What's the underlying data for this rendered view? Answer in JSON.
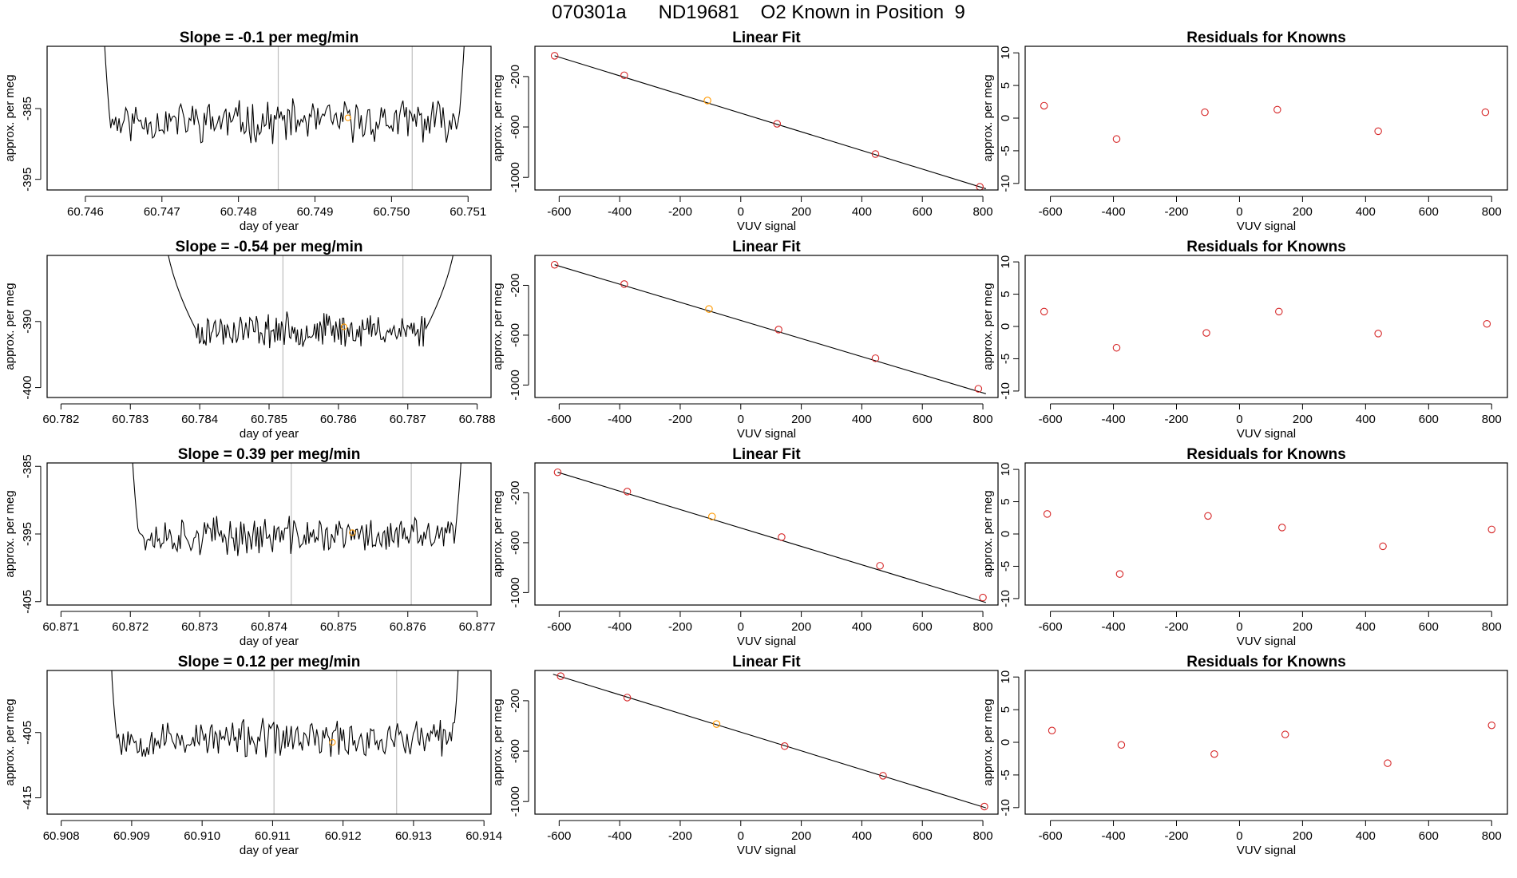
{
  "page_title": "070301a      ND19681    O2 Known in Position  9",
  "colors": {
    "line": "#000000",
    "point": "#d62728",
    "highlight": "#ff9900",
    "guide": "#bfbfbf",
    "frame": "#000000"
  },
  "chart_data": [
    {
      "type": "line",
      "row": 0,
      "title": "Slope =  -0.1  per meg/min",
      "xlabel": "day of year",
      "ylabel": "approx. per meg",
      "xlim": [
        60.7455,
        60.7513
      ],
      "ylim": [
        -396.5,
        -376.2
      ],
      "xticks": [
        "60.746",
        "60.747",
        "60.748",
        "60.749",
        "60.750",
        "60.751"
      ],
      "xtick_values": [
        60.746,
        60.747,
        60.748,
        60.749,
        60.75,
        60.751
      ],
      "yticks": [
        "-385",
        "-395"
      ],
      "ytick_values": [
        -385,
        -395
      ],
      "vlines": [
        60.74852,
        60.75027
      ],
      "highlight_point": {
        "x": 60.74943,
        "y": -386.3
      },
      "series_start": 60.7462,
      "series_end": 60.751,
      "spike_top": -360,
      "spike_len": 0.00012,
      "center": -386.8,
      "noise": 2.4,
      "seed": 11
    },
    {
      "type": "scatter",
      "row": 0,
      "title": "Linear Fit",
      "xlabel": "VUV signal",
      "ylabel": "approx. per meg",
      "xlim": [
        -680,
        850
      ],
      "ylim": [
        -1100,
        40
      ],
      "xticks": [
        "-600",
        "-400",
        "-200",
        "0",
        "200",
        "400",
        "600",
        "800"
      ],
      "xtick_values": [
        -600,
        -400,
        -200,
        0,
        200,
        400,
        600,
        800
      ],
      "yticks": [
        "-200",
        "-600",
        "-1000"
      ],
      "ytick_values": [
        -200,
        -600,
        -1000
      ],
      "x": [
        -615,
        -385,
        -110,
        120,
        445,
        790
      ],
      "y": [
        -35,
        -190,
        -390,
        -575,
        -815,
        -1075
      ],
      "highlight_index": 2,
      "fit_line": [
        [
          -615,
          -35
        ],
        [
          810,
          -1090
        ]
      ]
    },
    {
      "type": "scatter",
      "row": 0,
      "title": "Residuals for Knowns",
      "xlabel": "VUV signal",
      "ylabel": "approx. per meg",
      "xlim": [
        -680,
        850
      ],
      "ylim": [
        -11,
        11
      ],
      "xticks": [
        "-600",
        "-400",
        "-200",
        "0",
        "200",
        "400",
        "600",
        "800"
      ],
      "xtick_values": [
        -600,
        -400,
        -200,
        0,
        200,
        400,
        600,
        800
      ],
      "yticks": [
        "10",
        "5",
        "0",
        "-5",
        "-10"
      ],
      "ytick_values": [
        10,
        5,
        0,
        -5,
        -10
      ],
      "x": [
        -620,
        -390,
        -110,
        120,
        440,
        780
      ],
      "y": [
        1.9,
        -3.2,
        0.9,
        1.3,
        -2.0,
        0.9
      ]
    },
    {
      "type": "line",
      "row": 1,
      "title": "Slope =  -0.54  per meg/min",
      "xlabel": "day of year",
      "ylabel": "approx. per meg",
      "xlim": [
        60.7818,
        60.7882
      ],
      "ylim": [
        -401.5,
        -380
      ],
      "xticks": [
        "60.782",
        "60.783",
        "60.784",
        "60.785",
        "60.786",
        "60.787",
        "60.788"
      ],
      "xtick_values": [
        60.782,
        60.783,
        60.784,
        60.785,
        60.786,
        60.787,
        60.788
      ],
      "yticks": [
        "-390",
        "-400"
      ],
      "ytick_values": [
        -390,
        -400
      ],
      "vlines": [
        60.7852,
        60.78693
      ],
      "highlight_point": {
        "x": 60.78608,
        "y": -390.8
      },
      "series_start": 60.7835,
      "series_end": 60.7877,
      "spike_top": -376,
      "spike_len": 0.00045,
      "center": -391.3,
      "noise": 2.1,
      "seed": 23
    },
    {
      "type": "scatter",
      "row": 1,
      "title": "Linear Fit",
      "xlabel": "VUV signal",
      "ylabel": "approx. per meg",
      "xlim": [
        -680,
        850
      ],
      "ylim": [
        -1100,
        40
      ],
      "xticks": [
        "-600",
        "-400",
        "-200",
        "0",
        "200",
        "400",
        "600",
        "800"
      ],
      "xtick_values": [
        -600,
        -400,
        -200,
        0,
        200,
        400,
        600,
        800
      ],
      "yticks": [
        "-200",
        "-600",
        "-1000"
      ],
      "ytick_values": [
        -200,
        -600,
        -1000
      ],
      "x": [
        -615,
        -385,
        -105,
        125,
        445,
        785
      ],
      "y": [
        -35,
        -190,
        -390,
        -555,
        -785,
        -1030
      ],
      "highlight_index": 2,
      "fit_line": [
        [
          -615,
          -35
        ],
        [
          810,
          -1070
        ]
      ]
    },
    {
      "type": "scatter",
      "row": 1,
      "title": "Residuals for Knowns",
      "xlabel": "VUV signal",
      "ylabel": "approx. per meg",
      "xlim": [
        -680,
        850
      ],
      "ylim": [
        -11,
        11
      ],
      "xticks": [
        "-600",
        "-400",
        "-200",
        "0",
        "200",
        "400",
        "600",
        "800"
      ],
      "xtick_values": [
        -600,
        -400,
        -200,
        0,
        200,
        400,
        600,
        800
      ],
      "yticks": [
        "10",
        "5",
        "0",
        "-5",
        "-10"
      ],
      "ytick_values": [
        10,
        5,
        0,
        -5,
        -10
      ],
      "x": [
        -620,
        -390,
        -105,
        125,
        440,
        785
      ],
      "y": [
        2.3,
        -3.3,
        -1.0,
        2.3,
        -1.1,
        0.4
      ]
    },
    {
      "type": "line",
      "row": 2,
      "title": "Slope =  0.39  per meg/min",
      "xlabel": "day of year",
      "ylabel": "approx. per meg",
      "xlim": [
        60.8708,
        60.8772
      ],
      "ylim": [
        -405.5,
        -384.5
      ],
      "xticks": [
        "60.871",
        "60.872",
        "60.873",
        "60.874",
        "60.875",
        "60.876",
        "60.877"
      ],
      "xtick_values": [
        60.871,
        60.872,
        60.873,
        60.874,
        60.875,
        60.876,
        60.877
      ],
      "yticks": [
        "-385",
        "-395",
        "-405"
      ],
      "ytick_values": [
        -385,
        -395,
        -405
      ],
      "vlines": [
        60.87432,
        60.87605
      ],
      "highlight_point": {
        "x": 60.8752,
        "y": -394.8
      },
      "series_start": 60.872,
      "series_end": 60.8768,
      "spike_top": -375,
      "spike_len": 0.00012,
      "center": -395.3,
      "noise": 2.3,
      "seed": 37
    },
    {
      "type": "scatter",
      "row": 2,
      "title": "Linear Fit",
      "xlabel": "VUV signal",
      "ylabel": "approx. per meg",
      "xlim": [
        -680,
        850
      ],
      "ylim": [
        -1100,
        40
      ],
      "xticks": [
        "-600",
        "-400",
        "-200",
        "0",
        "200",
        "400",
        "600",
        "800"
      ],
      "xtick_values": [
        -600,
        -400,
        -200,
        0,
        200,
        400,
        600,
        800
      ],
      "yticks": [
        "-200",
        "-600",
        "-1000"
      ],
      "ytick_values": [
        -200,
        -600,
        -1000
      ],
      "x": [
        -605,
        -375,
        -95,
        135,
        460,
        800
      ],
      "y": [
        -35,
        -190,
        -390,
        -555,
        -785,
        -1040
      ],
      "highlight_index": 2,
      "fit_line": [
        [
          -605,
          -35
        ],
        [
          810,
          -1080
        ]
      ]
    },
    {
      "type": "scatter",
      "row": 2,
      "title": "Residuals for Knowns",
      "xlabel": "VUV signal",
      "ylabel": "approx. per meg",
      "xlim": [
        -680,
        850
      ],
      "ylim": [
        -11,
        11
      ],
      "xticks": [
        "-600",
        "-400",
        "-200",
        "0",
        "200",
        "400",
        "600",
        "800"
      ],
      "xtick_values": [
        -600,
        -400,
        -200,
        0,
        200,
        400,
        600,
        800
      ],
      "yticks": [
        "10",
        "5",
        "0",
        "-5",
        "-10"
      ],
      "ytick_values": [
        10,
        5,
        0,
        -5,
        -10
      ],
      "x": [
        -610,
        -380,
        -100,
        135,
        455,
        800
      ],
      "y": [
        3.1,
        -6.2,
        2.8,
        1.0,
        -1.9,
        0.7
      ]
    },
    {
      "type": "line",
      "row": 3,
      "title": "Slope =  0.12  per meg/min",
      "xlabel": "day of year",
      "ylabel": "approx. per meg",
      "xlim": [
        60.9078,
        60.9141
      ],
      "ylim": [
        -417.5,
        -395.5
      ],
      "xticks": [
        "60.908",
        "60.909",
        "60.910",
        "60.911",
        "60.912",
        "60.913",
        "60.914"
      ],
      "xtick_values": [
        60.908,
        60.909,
        60.91,
        60.911,
        60.912,
        60.913,
        60.914
      ],
      "yticks": [
        "-405",
        "-415"
      ],
      "ytick_values": [
        -405,
        -415
      ],
      "vlines": [
        60.91102,
        60.91276
      ],
      "highlight_point": {
        "x": 60.91185,
        "y": -406.5
      },
      "series_start": 60.9087,
      "series_end": 60.91365,
      "spike_top": -390,
      "spike_len": 9e-05,
      "center": -406.0,
      "noise": 2.4,
      "seed": 53
    },
    {
      "type": "scatter",
      "row": 3,
      "title": "Linear Fit",
      "xlabel": "VUV signal",
      "ylabel": "approx. per meg",
      "xlim": [
        -680,
        850
      ],
      "ylim": [
        -1100,
        40
      ],
      "xticks": [
        "-600",
        "-400",
        "-200",
        "0",
        "200",
        "400",
        "600",
        "800"
      ],
      "xtick_values": [
        -600,
        -400,
        -200,
        0,
        200,
        400,
        600,
        800
      ],
      "yticks": [
        "-200",
        "-600",
        "-1000"
      ],
      "ytick_values": [
        -200,
        -600,
        -1000
      ],
      "x": [
        -595,
        -375,
        -80,
        145,
        470,
        805
      ],
      "y": [
        -5,
        -175,
        -385,
        -560,
        -795,
        -1040
      ],
      "highlight_index": 2,
      "fit_line": [
        [
          -620,
          10
        ],
        [
          810,
          -1050
        ]
      ]
    },
    {
      "type": "scatter",
      "row": 3,
      "title": "Residuals for Knowns",
      "xlabel": "VUV signal",
      "ylabel": "approx. per meg",
      "xlim": [
        -680,
        850
      ],
      "ylim": [
        -11,
        11
      ],
      "xticks": [
        "-600",
        "-400",
        "-200",
        "0",
        "200",
        "400",
        "600",
        "800"
      ],
      "xtick_values": [
        -600,
        -400,
        -200,
        0,
        200,
        400,
        600,
        800
      ],
      "yticks": [
        "10",
        "5",
        "0",
        "-5",
        "-10"
      ],
      "ytick_values": [
        10,
        5,
        0,
        -5,
        -10
      ],
      "x": [
        -595,
        -375,
        -80,
        145,
        470,
        800
      ],
      "y": [
        1.8,
        -0.4,
        -1.8,
        1.2,
        -3.2,
        2.6
      ]
    }
  ]
}
